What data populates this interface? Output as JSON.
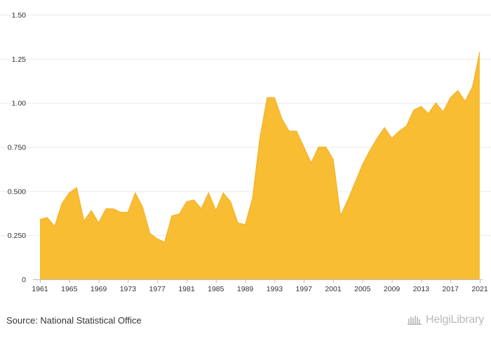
{
  "chart_data": {
    "type": "area",
    "title": "",
    "xlabel": "",
    "ylabel": "",
    "x": [
      1961,
      1962,
      1963,
      1964,
      1965,
      1966,
      1967,
      1968,
      1969,
      1970,
      1971,
      1972,
      1973,
      1974,
      1975,
      1976,
      1977,
      1978,
      1979,
      1980,
      1981,
      1982,
      1983,
      1984,
      1985,
      1986,
      1987,
      1988,
      1989,
      1990,
      1991,
      1992,
      1993,
      1994,
      1995,
      1996,
      1997,
      1998,
      1999,
      2000,
      2001,
      2002,
      2003,
      2004,
      2005,
      2006,
      2007,
      2008,
      2009,
      2010,
      2011,
      2012,
      2013,
      2014,
      2015,
      2016,
      2017,
      2018,
      2019,
      2020,
      2021
    ],
    "values": [
      0.34,
      0.35,
      0.3,
      0.43,
      0.49,
      0.52,
      0.33,
      0.39,
      0.32,
      0.4,
      0.4,
      0.38,
      0.38,
      0.49,
      0.41,
      0.26,
      0.23,
      0.21,
      0.36,
      0.37,
      0.44,
      0.45,
      0.4,
      0.49,
      0.39,
      0.49,
      0.44,
      0.32,
      0.31,
      0.46,
      0.8,
      1.03,
      1.03,
      0.91,
      0.84,
      0.84,
      0.75,
      0.66,
      0.75,
      0.75,
      0.68,
      0.36,
      0.45,
      0.55,
      0.65,
      0.73,
      0.8,
      0.86,
      0.8,
      0.84,
      0.87,
      0.96,
      0.98,
      0.94,
      1.0,
      0.95,
      1.03,
      1.07,
      1.01,
      1.09,
      1.29
    ],
    "ylim": [
      0,
      1.5
    ],
    "yticks": [
      0,
      0.25,
      0.5,
      0.75,
      1.0,
      1.25,
      1.5
    ],
    "ytick_labels": [
      "0",
      "0.250",
      "0.500",
      "0.750",
      "1.00",
      "1.25",
      "1.50"
    ],
    "xticks": [
      1961,
      1965,
      1969,
      1973,
      1977,
      1981,
      1985,
      1989,
      1993,
      1997,
      2001,
      2005,
      2009,
      2013,
      2017,
      2021
    ],
    "xtick_labels": [
      "1961",
      "1965",
      "1969",
      "1973",
      "1977",
      "1981",
      "1985",
      "1989",
      "1993",
      "1997",
      "2001",
      "2005",
      "2009",
      "2013",
      "2017",
      "2021"
    ],
    "grid": true,
    "fill_color": "#f8bd32",
    "line_color": "#f4b22a"
  },
  "footer": {
    "source": "Source: National Statistical Office",
    "brand_icon": "helgi-library-logo-icon",
    "brand": "HelgiLibrary"
  }
}
